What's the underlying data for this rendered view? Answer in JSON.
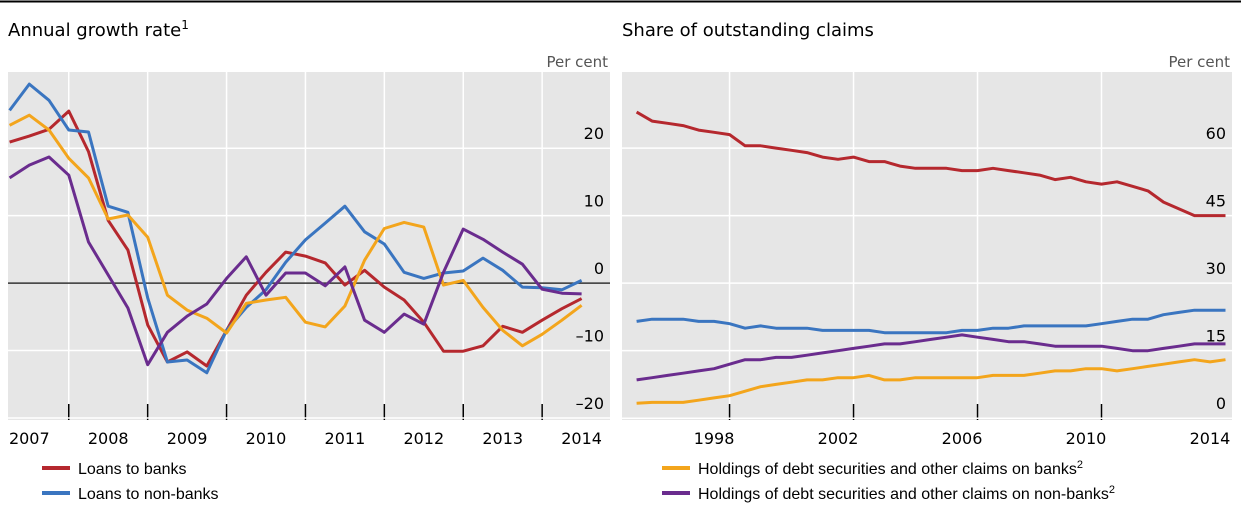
{
  "chart_data": [
    {
      "type": "line",
      "title": "Annual growth rate",
      "title_note": "1",
      "y_label": "Per cent",
      "x": [
        2007.25,
        2007.5,
        2007.75,
        2008,
        2008.25,
        2008.5,
        2008.75,
        2009,
        2009.25,
        2009.5,
        2009.75,
        2010,
        2010.25,
        2010.5,
        2010.75,
        2011,
        2011.25,
        2011.5,
        2011.75,
        2012,
        2012.25,
        2012.5,
        2012.75,
        2013,
        2013.25,
        2013.5,
        2013.75,
        2014,
        2014.25,
        2014.5
      ],
      "xlim": [
        2007.23,
        2014.86
      ],
      "xticks": [
        {
          "value": 2007.5,
          "label": "2007"
        },
        {
          "value": 2008.5,
          "label": "2008"
        },
        {
          "value": 2009.5,
          "label": "2009"
        },
        {
          "value": 2010.5,
          "label": "2010"
        },
        {
          "value": 2011.5,
          "label": "2011"
        },
        {
          "value": 2012.5,
          "label": "2012"
        },
        {
          "value": 2013.5,
          "label": "2013"
        },
        {
          "value": 2014.5,
          "label": "2014"
        }
      ],
      "xgrid": [
        2008,
        2009,
        2010,
        2011,
        2012,
        2013,
        2014
      ],
      "ylim": [
        -20.3,
        31.3
      ],
      "yticks": [
        {
          "value": -20,
          "label": "–20"
        },
        {
          "value": -10,
          "label": "–10"
        },
        0,
        10,
        20
      ],
      "grid": true,
      "zero_line": true,
      "series": [
        {
          "name": "Loans to banks",
          "color": "#b5282e",
          "values": [
            20.9,
            21.8,
            22.8,
            25.5,
            19.5,
            9.3,
            4.9,
            -6.2,
            -11.7,
            -10.2,
            -12.3,
            -7,
            -1.8,
            1.6,
            4.6,
            4,
            3,
            -0.3,
            1.9,
            -0.6,
            -2.5,
            -5.8,
            -10.1,
            -10.1,
            -9.3,
            -6.4,
            -7.3,
            -5.5,
            -3.8,
            -2.3
          ]
        },
        {
          "name": "Loans to non-banks",
          "color": "#3a75c0",
          "values": [
            25.6,
            29.5,
            27.1,
            22.7,
            22.4,
            11.4,
            10.5,
            -2.2,
            -11.7,
            -11.4,
            -13.3,
            -7,
            -3.6,
            -1,
            3.1,
            6.4,
            8.9,
            11.4,
            7.6,
            5.8,
            1.6,
            0.7,
            1.5,
            1.8,
            3.7,
            1.9,
            -0.6,
            -0.7,
            -1,
            0.4
          ]
        },
        {
          "name": "Holdings of debt securities and other claims on banks",
          "note": "2",
          "color": "#f3a51c",
          "values": [
            23.4,
            24.9,
            22.7,
            18.5,
            15.6,
            9.5,
            10.1,
            6.8,
            -1.8,
            -4,
            -5.2,
            -7.4,
            -3,
            -2.5,
            -2.1,
            -5.8,
            -6.5,
            -3.4,
            3.4,
            8.1,
            9,
            8.3,
            -0.3,
            0.4,
            -3.6,
            -7,
            -9.3,
            -7.6,
            -5.5,
            -3.3
          ]
        },
        {
          "name": "Holdings of debt securities and other claims on non-banks",
          "note": "2",
          "color": "#6a2c8e",
          "values": [
            15.6,
            17.5,
            18.7,
            16,
            6.1,
            1.2,
            -3.7,
            -12.1,
            -7.3,
            -4.9,
            -3.1,
            0.7,
            3.9,
            -1.8,
            1.5,
            1.5,
            -0.4,
            2.4,
            -5.5,
            -7.3,
            -4.6,
            -6.1,
            1.6,
            8,
            6.5,
            4.6,
            2.8,
            -0.9,
            -1.5,
            -1.6
          ]
        }
      ]
    },
    {
      "type": "line",
      "title": "Share of outstanding claims",
      "y_label": "Per cent",
      "x": [
        1996,
        1996.5,
        1997,
        1997.5,
        1998,
        1998.5,
        1999,
        1999.5,
        2000,
        2000.5,
        2001,
        2001.5,
        2002,
        2002.5,
        2003,
        2003.5,
        2004,
        2004.5,
        2005,
        2005.5,
        2006,
        2006.5,
        2007,
        2007.5,
        2008,
        2008.5,
        2009,
        2009.5,
        2010,
        2010.5,
        2011,
        2011.5,
        2012,
        2012.5,
        2013,
        2013.5,
        2014,
        2014.5,
        2015
      ],
      "xlim": [
        1995.53,
        2015.21
      ],
      "xticks": [
        {
          "value": 1998.5,
          "label": "1998"
        },
        {
          "value": 2002.5,
          "label": "2002"
        },
        {
          "value": 2006.5,
          "label": "2006"
        },
        {
          "value": 2010.5,
          "label": "2010"
        },
        {
          "value": 2014.5,
          "label": "2014"
        }
      ],
      "xgrid": [
        1999,
        2003,
        2007,
        2011
      ],
      "ylim": [
        -0.4,
        76.9
      ],
      "yticks": [
        0,
        15,
        30,
        45,
        60
      ],
      "grid": true,
      "series": [
        {
          "color": "#b5282e",
          "values": [
            68,
            66,
            65.5,
            65,
            64,
            63.5,
            63,
            60.5,
            60.5,
            60,
            59.5,
            59,
            58,
            57.5,
            58,
            57,
            57,
            56,
            55.5,
            55.5,
            55.5,
            55,
            55,
            55.5,
            55,
            54.5,
            54,
            53,
            53.5,
            52.5,
            52,
            52.5,
            51.5,
            50.5,
            48,
            46.5,
            45,
            45,
            45
          ]
        },
        {
          "color": "#3a75c0",
          "values": [
            21.5,
            22,
            22,
            22,
            21.5,
            21.5,
            21,
            20,
            20.5,
            20,
            20,
            20,
            19.5,
            19.5,
            19.5,
            19.5,
            19,
            19,
            19,
            19,
            19,
            19.5,
            19.5,
            20,
            20,
            20.5,
            20.5,
            20.5,
            20.5,
            20.5,
            21,
            21.5,
            22,
            22,
            23,
            23.5,
            24,
            24,
            24
          ]
        },
        {
          "color": "#f3a51c",
          "values": [
            3.3,
            3.5,
            3.5,
            3.5,
            4,
            4.5,
            5,
            6,
            7,
            7.5,
            8,
            8.5,
            8.5,
            9,
            9,
            9.5,
            8.5,
            8.5,
            9,
            9,
            9,
            9,
            9,
            9.5,
            9.5,
            9.5,
            10,
            10.5,
            10.5,
            11,
            11,
            10.5,
            11,
            11.5,
            12,
            12.5,
            13,
            12.5,
            13
          ]
        },
        {
          "color": "#6a2c8e",
          "values": [
            8.5,
            9,
            9.5,
            10,
            10.5,
            11,
            12,
            13,
            13,
            13.5,
            13.5,
            14,
            14.5,
            15,
            15.5,
            16,
            16.5,
            16.5,
            17,
            17.5,
            18,
            18.5,
            18,
            17.5,
            17,
            17,
            16.5,
            16,
            16,
            16,
            16,
            15.5,
            15,
            15,
            15.5,
            16,
            16.5,
            16.5,
            16.5
          ]
        }
      ]
    }
  ]
}
